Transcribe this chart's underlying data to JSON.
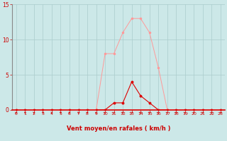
{
  "title": "",
  "xlabel": "Vent moyen/en rafales ( km/h )",
  "ylabel": "",
  "bg_color": "#cce8e8",
  "grid_color": "#aacccc",
  "line1_color": "#ff9999",
  "line2_color": "#dd0000",
  "spine_left_color": "#888888",
  "spine_bottom_color": "#dd0000",
  "axis_label_color": "#cc0000",
  "tick_color": "#cc0000",
  "ylim": [
    0,
    15
  ],
  "xlim": [
    -0.5,
    23.5
  ],
  "yticks": [
    0,
    5,
    10,
    15
  ],
  "xticks": [
    0,
    1,
    2,
    3,
    4,
    5,
    6,
    7,
    8,
    9,
    10,
    11,
    12,
    13,
    14,
    15,
    16,
    17,
    18,
    19,
    20,
    21,
    22,
    23
  ],
  "x_rafales": [
    0,
    1,
    2,
    3,
    4,
    5,
    6,
    7,
    8,
    9,
    10,
    11,
    12,
    13,
    14,
    15,
    16,
    17,
    18,
    19,
    20,
    21,
    22,
    23
  ],
  "y_rafales": [
    0,
    0,
    0,
    0,
    0,
    0,
    0,
    0,
    0,
    0,
    8,
    8,
    11,
    13,
    13,
    11,
    6,
    0,
    0,
    0,
    0,
    0,
    0,
    0
  ],
  "x_moyen": [
    0,
    1,
    2,
    3,
    4,
    5,
    6,
    7,
    8,
    9,
    10,
    11,
    12,
    13,
    14,
    15,
    16,
    17,
    18,
    19,
    20,
    21,
    22,
    23
  ],
  "y_moyen": [
    0,
    0,
    0,
    0,
    0,
    0,
    0,
    0,
    0,
    0,
    0,
    1,
    1,
    4,
    2,
    1,
    0,
    0,
    0,
    0,
    0,
    0,
    0,
    0
  ]
}
